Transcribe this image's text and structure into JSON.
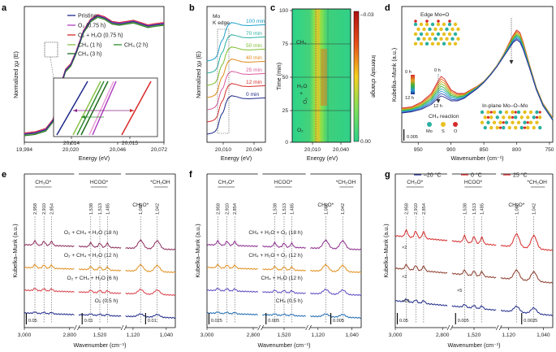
{
  "panels": {
    "a": {
      "letter": "a",
      "xlabel": "Energy (eV)",
      "ylabel": "Normalized χμ (E)",
      "xticks": [
        "19,994",
        "20,020",
        "20,046",
        "20,072"
      ],
      "inset_xticks": [
        "20,014",
        "20,015"
      ]
    },
    "b": {
      "letter": "b",
      "xlabel": "Energy (eV)",
      "ylabel": "Normalized χμ (E)",
      "xticks": [
        "20,010",
        "20,040"
      ],
      "annotation": "Mo\nK edge"
    },
    "c": {
      "letter": "c",
      "xlabel": "Energy (eV)",
      "ylabel": "Time (min)",
      "xticks": [
        "20,010",
        "20,040"
      ],
      "yticks": [
        "0",
        "25",
        "50",
        "75",
        "100"
      ],
      "colorbar_title": "Intensity change",
      "colorbar_top": "–0.03",
      "colorbar_bottom": "0.00",
      "regions": [
        "CH₄",
        "H₂O",
        "O₂",
        "+",
        "O₂"
      ]
    },
    "d": {
      "letter": "d",
      "xlabel": "Wavenumber (cm⁻¹)",
      "ylabel": "Kubelka–Munk (a.u.)",
      "xticks": [
        "950",
        "900",
        "850",
        "800",
        "750"
      ],
      "title_edge": "Edge Mo=O",
      "title_inplane": "In-plane Mo–O–Mo",
      "time_top": "0 h",
      "time_bottom": "12 h",
      "arrow_top": "0 h",
      "arrow_bottom": "12 h",
      "reaction": "CH₄ reaction",
      "legend_atoms": [
        "Mo",
        "S",
        "O"
      ],
      "scale": "0.005"
    },
    "e": {
      "letter": "e",
      "xlabel": "Wavenumber (cm⁻¹)",
      "ylabel": "Kubelka–Munk (a.u.)",
      "xticks": [
        "3,000",
        "2,800",
        "1,520",
        "1,120",
        "1,040"
      ],
      "groups": [
        "CH₃O*",
        "HCOO*",
        "CH₃O*",
        "*CH₂OH"
      ],
      "peaks": [
        "2,958",
        "2,910",
        "2,854",
        "1,538",
        "1,513",
        "1,485",
        "1,088",
        "1,042"
      ],
      "traces": [
        "O₂ + CH₄ + H₂O (18 h)",
        "O₂ + CH₄ + H₂O (12 h)",
        "O₂ + CH₄ + H₂O (6 h)",
        "O₂ (0.5 h)"
      ],
      "scales": [
        "0.05",
        "0.01",
        "0.01"
      ]
    },
    "f": {
      "letter": "f",
      "xlabel": "Wavenumber (cm⁻¹)",
      "ylabel": "Kubelka–Munk (a.u.)",
      "xticks": [
        "3,000",
        "2,800",
        "1,520",
        "1,120",
        "1,040"
      ],
      "groups": [
        "CH₃O*",
        "HCOO*",
        "CH₃O*",
        "*CH₂OH"
      ],
      "peaks": [
        "2,958",
        "2,910",
        "2,854",
        "1,538",
        "1,513",
        "1,485",
        "1,088",
        "1,042"
      ],
      "traces": [
        "CH₄ + H₂O + O₂ (18 h)",
        "CH₄ + H₂O + O₂ (12 h)",
        "CH₄ + H₂O (12 h)",
        "CH₄ (0.5 h)"
      ],
      "scales": [
        "0.025",
        "0.005",
        "0.005"
      ]
    },
    "g": {
      "letter": "g",
      "xlabel": "Wavenumber (cm⁻¹)",
      "ylabel": "Kubelka–Munk (a.u.)",
      "xticks": [
        "3,000",
        "2,800",
        "1,520",
        "1,120",
        "1,040"
      ],
      "groups": [
        "CH₃O*",
        "HCOO*",
        "CH₃O*",
        "*CH₂OH"
      ],
      "peaks": [
        "2,958",
        "2,910",
        "2,854",
        "1,538",
        "1,513",
        "1,485",
        "1,088",
        "1,042"
      ],
      "legend": [
        "–20 °C",
        "0 °C",
        "25 °C"
      ],
      "multipliers": [
        "×2",
        "×2",
        "×5",
        "×10"
      ],
      "scales": [
        "0.05",
        "0.005",
        "0.0025"
      ]
    }
  },
  "chart_data": [
    {
      "panel": "a",
      "type": "line",
      "xlim": [
        19994,
        20072
      ],
      "series": [
        {
          "name": "Pristine",
          "color": "#1f2a8a",
          "x": [
            19994,
            20000,
            20006,
            20010,
            20013,
            20015,
            20017,
            20020,
            20023,
            20027,
            20031,
            20035,
            20039,
            20043,
            20047,
            20051,
            20055,
            20059,
            20063,
            20067,
            20072
          ],
          "y": [
            0.02,
            0.03,
            0.06,
            0.14,
            0.32,
            0.48,
            0.58,
            0.63,
            0.74,
            0.92,
            1.02,
            1.06,
            1.04,
            1.0,
            0.99,
            1.0,
            1.01,
            0.99,
            0.97,
            0.98,
            0.99
          ]
        },
        {
          "name": "O₂ (0.75 h)",
          "color": "#b040c0"
        },
        {
          "name": "O₂ + H₂O (0.75 h)",
          "color": "#d62a2a"
        },
        {
          "name": "CH₄ (1 h)",
          "color": "#8bc34a"
        },
        {
          "name": "CH₄ (2 h)",
          "color": "#2e8b2e"
        },
        {
          "name": "CH₄ (3 h)",
          "color": "#1d6b1d"
        }
      ]
    },
    {
      "panel": "b",
      "type": "line",
      "xlim": [
        20000,
        20050
      ],
      "series": [
        {
          "name": "100 min",
          "color": "#1aa0c8"
        },
        {
          "name": "70 min",
          "color": "#2bb0a0"
        },
        {
          "name": "50 min",
          "color": "#7cbf2a"
        },
        {
          "name": "40 min",
          "color": "#e08a1a"
        },
        {
          "name": "25 min",
          "color": "#d85a9a"
        },
        {
          "name": "12 min",
          "color": "#d63030"
        },
        {
          "name": "0 min",
          "color": "#1f2a8a"
        }
      ]
    },
    {
      "panel": "c",
      "type": "heatmap",
      "xlim": [
        20000,
        20050
      ],
      "ylim": [
        0,
        100
      ],
      "zlim": [
        -0.03,
        0.0
      ]
    },
    {
      "panel": "d",
      "type": "line",
      "xlim": [
        975,
        745
      ],
      "series": [
        {
          "name": "0 h",
          "color": "#d62a2a",
          "x": [
            975,
            960,
            945,
            930,
            920,
            915,
            910,
            900,
            890,
            880,
            870,
            860,
            850,
            840,
            830,
            820,
            810,
            805,
            800,
            795,
            790,
            780,
            770,
            760,
            750,
            745
          ],
          "y": [
            0.28,
            0.29,
            0.33,
            0.4,
            0.5,
            0.54,
            0.52,
            0.43,
            0.4,
            0.4,
            0.43,
            0.46,
            0.5,
            0.56,
            0.63,
            0.72,
            0.83,
            0.88,
            0.92,
            0.9,
            0.82,
            0.63,
            0.45,
            0.32,
            0.24,
            0.2
          ]
        },
        {
          "name": "12 h",
          "color": "#1f2a8a",
          "x": [
            975,
            960,
            945,
            930,
            920,
            915,
            910,
            900,
            890,
            880,
            870,
            860,
            850,
            840,
            830,
            820,
            810,
            805,
            800,
            795,
            790,
            780,
            770,
            760,
            750,
            745
          ],
          "y": [
            0.24,
            0.25,
            0.27,
            0.31,
            0.36,
            0.38,
            0.37,
            0.34,
            0.34,
            0.36,
            0.4,
            0.44,
            0.49,
            0.55,
            0.62,
            0.7,
            0.78,
            0.82,
            0.84,
            0.82,
            0.76,
            0.6,
            0.43,
            0.3,
            0.22,
            0.18
          ]
        }
      ]
    }
  ]
}
